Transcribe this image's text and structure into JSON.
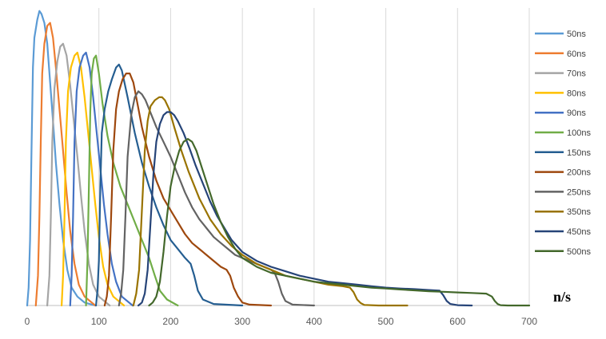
{
  "chart_data": {
    "type": "line",
    "title": "",
    "xlabel": "n/s",
    "ylabel": "",
    "xlim": [
      0,
      700
    ],
    "ylim": [
      0,
      1
    ],
    "x_ticks": [
      0,
      100,
      200,
      300,
      400,
      500,
      600,
      700
    ],
    "grid": "vertical",
    "legend": "right",
    "series": [
      {
        "name": "50ns",
        "color": "#5B9BD5",
        "x": [
          0,
          2,
          4,
          6,
          8,
          10,
          14,
          17,
          20,
          24,
          28,
          32,
          36,
          40,
          45,
          50,
          56,
          62,
          70,
          80,
          95
        ],
        "y": [
          0,
          0.06,
          0.22,
          0.52,
          0.8,
          0.9,
          0.96,
          0.99,
          0.98,
          0.95,
          0.88,
          0.75,
          0.62,
          0.48,
          0.34,
          0.22,
          0.12,
          0.06,
          0.03,
          0.01,
          0
        ]
      },
      {
        "name": "60ns",
        "color": "#ED7D31",
        "x": [
          12,
          15,
          17,
          19,
          21,
          24,
          28,
          32,
          36,
          40,
          45,
          50,
          55,
          60,
          66,
          72,
          80,
          95
        ],
        "y": [
          0,
          0.1,
          0.3,
          0.55,
          0.78,
          0.88,
          0.94,
          0.95,
          0.9,
          0.8,
          0.66,
          0.52,
          0.38,
          0.25,
          0.14,
          0.07,
          0.03,
          0
        ]
      },
      {
        "name": "70ns",
        "color": "#A5A5A5",
        "x": [
          28,
          31,
          33,
          35,
          38,
          42,
          46,
          50,
          55,
          60,
          65,
          70,
          75,
          80,
          86,
          92,
          100,
          115
        ],
        "y": [
          0,
          0.1,
          0.3,
          0.55,
          0.73,
          0.82,
          0.87,
          0.88,
          0.84,
          0.74,
          0.62,
          0.5,
          0.37,
          0.25,
          0.14,
          0.07,
          0.03,
          0
        ]
      },
      {
        "name": "80ns",
        "color": "#FFC000",
        "x": [
          48,
          50,
          52,
          54,
          57,
          61,
          66,
          70,
          75,
          80,
          85,
          90,
          95,
          100,
          106,
          112,
          120,
          135
        ],
        "y": [
          0,
          0.1,
          0.3,
          0.55,
          0.72,
          0.8,
          0.84,
          0.85,
          0.8,
          0.7,
          0.58,
          0.46,
          0.34,
          0.23,
          0.13,
          0.07,
          0.03,
          0
        ]
      },
      {
        "name": "90ns",
        "color": "#4472C4",
        "x": [
          60,
          62,
          64,
          66,
          69,
          73,
          78,
          82,
          87,
          92,
          97,
          102,
          107,
          112,
          118,
          124,
          132,
          147
        ],
        "y": [
          0,
          0.1,
          0.3,
          0.55,
          0.72,
          0.8,
          0.84,
          0.85,
          0.8,
          0.7,
          0.58,
          0.46,
          0.34,
          0.24,
          0.14,
          0.08,
          0.03,
          0
        ]
      },
      {
        "name": "100ns",
        "color": "#70AD47",
        "x": [
          82,
          84,
          86,
          88,
          90,
          93,
          96,
          100,
          105,
          112,
          120,
          130,
          140,
          150,
          160,
          170,
          178,
          185,
          195,
          210
        ],
        "y": [
          0,
          0.15,
          0.4,
          0.65,
          0.78,
          0.83,
          0.84,
          0.78,
          0.68,
          0.57,
          0.48,
          0.4,
          0.34,
          0.28,
          0.22,
          0.16,
          0.1,
          0.05,
          0.02,
          0
        ]
      },
      {
        "name": "150ns",
        "color": "#255E91",
        "x": [
          96,
          98,
          100,
          102,
          104,
          108,
          113,
          118,
          124,
          128,
          132,
          140,
          150,
          160,
          170,
          180,
          190,
          200,
          210,
          220,
          228,
          233,
          238,
          245,
          260,
          300
        ],
        "y": [
          0,
          0.05,
          0.15,
          0.4,
          0.58,
          0.66,
          0.72,
          0.76,
          0.8,
          0.81,
          0.79,
          0.7,
          0.58,
          0.48,
          0.4,
          0.33,
          0.27,
          0.22,
          0.19,
          0.16,
          0.14,
          0.1,
          0.05,
          0.02,
          0.005,
          0
        ]
      },
      {
        "name": "200ns",
        "color": "#9E480E",
        "x": [
          108,
          111,
          114,
          117,
          120,
          124,
          128,
          133,
          138,
          143,
          148,
          152,
          160,
          170,
          180,
          190,
          200,
          210,
          220,
          230,
          240,
          250,
          260,
          270,
          278,
          283,
          288,
          294,
          300,
          310,
          340
        ],
        "y": [
          0,
          0.03,
          0.1,
          0.3,
          0.52,
          0.66,
          0.72,
          0.76,
          0.78,
          0.78,
          0.75,
          0.7,
          0.6,
          0.5,
          0.42,
          0.36,
          0.32,
          0.28,
          0.24,
          0.21,
          0.19,
          0.17,
          0.15,
          0.13,
          0.12,
          0.1,
          0.06,
          0.03,
          0.01,
          0.003,
          0
        ]
      },
      {
        "name": "250ns",
        "color": "#636363",
        "x": [
          128,
          131,
          134,
          137,
          140,
          145,
          150,
          155,
          160,
          165,
          170,
          180,
          190,
          200,
          210,
          220,
          230,
          240,
          250,
          260,
          270,
          280,
          290,
          300,
          310,
          320,
          330,
          340,
          345,
          350,
          355,
          360,
          370,
          400
        ],
        "y": [
          0,
          0.04,
          0.12,
          0.3,
          0.5,
          0.64,
          0.7,
          0.72,
          0.71,
          0.69,
          0.66,
          0.6,
          0.55,
          0.5,
          0.44,
          0.38,
          0.33,
          0.29,
          0.26,
          0.23,
          0.21,
          0.19,
          0.17,
          0.16,
          0.15,
          0.14,
          0.13,
          0.12,
          0.11,
          0.08,
          0.04,
          0.015,
          0.003,
          0
        ]
      },
      {
        "name": "350ns",
        "color": "#997300",
        "x": [
          148,
          152,
          156,
          160,
          164,
          168,
          172,
          178,
          184,
          188,
          192,
          198,
          205,
          215,
          225,
          240,
          255,
          270,
          285,
          300,
          320,
          340,
          360,
          380,
          400,
          420,
          440,
          450,
          455,
          460,
          465,
          470,
          490,
          530
        ],
        "y": [
          0,
          0.04,
          0.12,
          0.32,
          0.52,
          0.62,
          0.67,
          0.69,
          0.7,
          0.7,
          0.69,
          0.66,
          0.6,
          0.52,
          0.45,
          0.36,
          0.29,
          0.24,
          0.2,
          0.17,
          0.14,
          0.12,
          0.1,
          0.09,
          0.08,
          0.07,
          0.065,
          0.06,
          0.045,
          0.02,
          0.008,
          0.002,
          0,
          0
        ]
      },
      {
        "name": "450ns",
        "color": "#264478",
        "x": [
          155,
          160,
          164,
          168,
          172,
          176,
          180,
          185,
          190,
          195,
          200,
          205,
          210,
          218,
          226,
          235,
          245,
          255,
          265,
          275,
          285,
          300,
          320,
          340,
          360,
          380,
          400,
          420,
          440,
          460,
          480,
          500,
          520,
          540,
          560,
          575,
          580,
          585,
          590,
          600,
          620
        ],
        "y": [
          0,
          0.01,
          0.04,
          0.12,
          0.28,
          0.44,
          0.55,
          0.61,
          0.64,
          0.65,
          0.65,
          0.64,
          0.62,
          0.58,
          0.53,
          0.47,
          0.41,
          0.35,
          0.3,
          0.26,
          0.22,
          0.18,
          0.15,
          0.13,
          0.115,
          0.1,
          0.09,
          0.08,
          0.075,
          0.07,
          0.065,
          0.06,
          0.057,
          0.055,
          0.052,
          0.05,
          0.035,
          0.015,
          0.005,
          0.001,
          0
        ]
      },
      {
        "name": "500ns",
        "color": "#43682B",
        "x": [
          170,
          175,
          180,
          185,
          190,
          195,
          200,
          206,
          212,
          218,
          224,
          230,
          236,
          244,
          252,
          260,
          270,
          280,
          290,
          300,
          320,
          340,
          360,
          380,
          400,
          420,
          440,
          460,
          480,
          500,
          520,
          540,
          560,
          580,
          600,
          620,
          640,
          648,
          652,
          656,
          660,
          670,
          700
        ],
        "y": [
          0,
          0.01,
          0.03,
          0.08,
          0.18,
          0.3,
          0.4,
          0.47,
          0.52,
          0.55,
          0.56,
          0.55,
          0.52,
          0.46,
          0.4,
          0.34,
          0.28,
          0.23,
          0.19,
          0.16,
          0.13,
          0.11,
          0.1,
          0.09,
          0.08,
          0.075,
          0.07,
          0.065,
          0.06,
          0.057,
          0.054,
          0.051,
          0.048,
          0.046,
          0.044,
          0.042,
          0.04,
          0.03,
          0.015,
          0.005,
          0.001,
          0,
          0
        ]
      }
    ]
  }
}
